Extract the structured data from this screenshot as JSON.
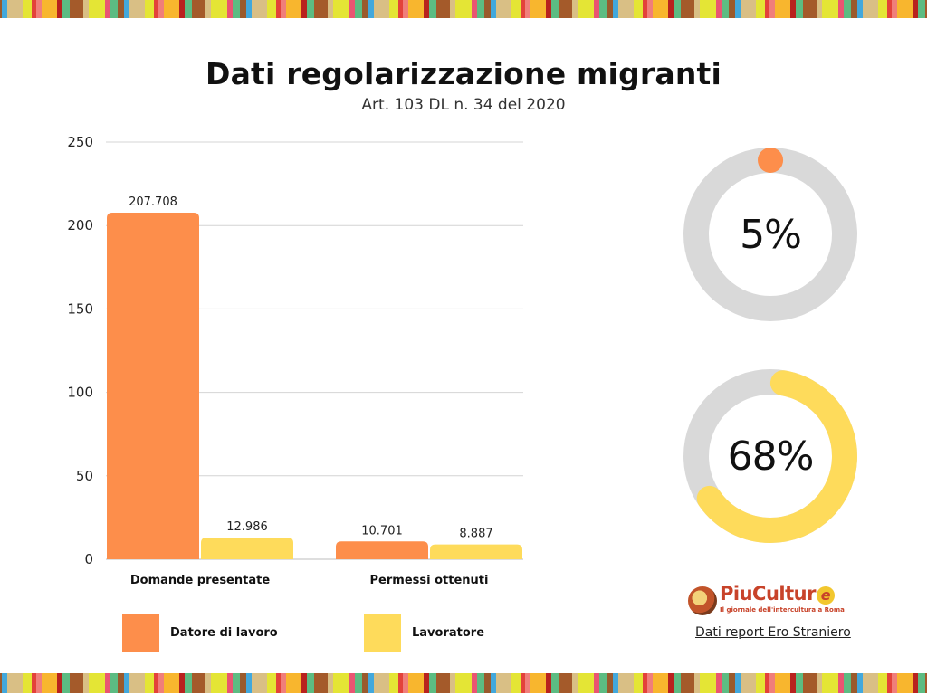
{
  "header": {
    "title": "Dati regolarizzazione migranti",
    "subtitle": "Art. 103 DL n. 34 del 2020"
  },
  "colors": {
    "datore": "#fd8e4b",
    "lavoratore": "#fedb5b",
    "track": "#d9d9d9",
    "grid": "#d4d4d4"
  },
  "chart_data": [
    {
      "type": "bar",
      "title": "Dati regolarizzazione migranti",
      "subtitle": "Art. 103 DL n. 34 del 2020",
      "xlabel": "",
      "ylabel": "",
      "ylim": [
        0,
        250
      ],
      "yticks": [
        0,
        50,
        100,
        150,
        200,
        250
      ],
      "ytick_labels": [
        "0",
        "50",
        "100",
        "150",
        "200",
        "250"
      ],
      "grid": true,
      "categories": [
        "Domande presentate",
        "Permessi ottenuti"
      ],
      "series": [
        {
          "name": "Datore di lavoro",
          "color": "#fd8e4b",
          "values": [
            207.708,
            10.701
          ],
          "labels": [
            "207.708",
            "10.701"
          ]
        },
        {
          "name": "Lavoratore",
          "color": "#fedb5b",
          "values": [
            12.986,
            8.887
          ],
          "labels": [
            "12.986",
            "8.887"
          ]
        }
      ],
      "legend_placement": "bottom"
    },
    {
      "type": "pie",
      "variant": "donut",
      "label": "5%",
      "values": [
        5,
        95
      ],
      "colors": [
        "#fd8e4b",
        "#d9d9d9"
      ]
    },
    {
      "type": "pie",
      "variant": "donut",
      "label": "68%",
      "values": [
        68,
        32
      ],
      "colors": [
        "#fedb5b",
        "#d9d9d9"
      ]
    }
  ],
  "legend": [
    {
      "label": "Datore di lavoro",
      "color": "#fd8e4b"
    },
    {
      "label": "Lavoratore",
      "color": "#fedb5b"
    }
  ],
  "donuts": [
    {
      "label": "5%",
      "percent": 5,
      "color": "#fd8e4b"
    },
    {
      "label": "68%",
      "percent": 68,
      "color": "#fedb5b"
    }
  ],
  "footer": {
    "logo_name": "PiuCultur",
    "logo_name_end": "e",
    "logo_tagline": "Il giornale dell'intercultura a Roma",
    "source_link": "Dati report Ero Straniero"
  }
}
